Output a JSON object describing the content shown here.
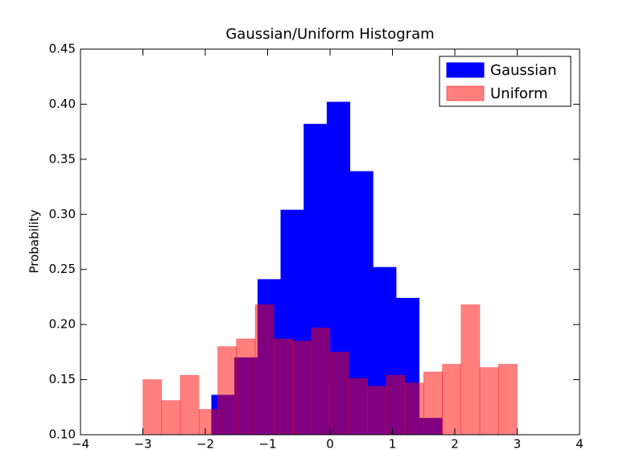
{
  "chart_data": {
    "type": "histogram",
    "title": "Gaussian/Uniform Histogram",
    "y_label": "Probability",
    "xlim": [
      -4,
      4
    ],
    "ylim": [
      0.1,
      0.45
    ],
    "xticks": [
      {
        "value": -4,
        "label": "−4"
      },
      {
        "value": -3,
        "label": "−3"
      },
      {
        "value": -2,
        "label": "−2"
      },
      {
        "value": -1,
        "label": "−1"
      },
      0,
      1,
      2,
      3,
      4
    ],
    "yticks": [
      {
        "value": 0.1,
        "label": "0.10"
      },
      0.15,
      {
        "value": 0.2,
        "label": "0.20"
      },
      0.25,
      {
        "value": 0.3,
        "label": "0.30"
      },
      0.35,
      {
        "value": 0.4,
        "label": "0.40"
      },
      0.45
    ],
    "legend": "upper right",
    "series": [
      {
        "name": "Gaussian",
        "color": "#0000ff",
        "opacity": 1,
        "bins": [
          -1.9,
          -1.53,
          -1.16,
          -0.79,
          -0.42,
          -0.05,
          0.32,
          0.69,
          1.06,
          1.43,
          1.8
        ],
        "values": [
          0.136,
          0.17,
          0.241,
          0.304,
          0.382,
          0.402,
          0.339,
          0.252,
          0.224,
          0.115
        ]
      },
      {
        "name": "Uniform",
        "color": "#ff0000",
        "opacity": 0.5,
        "bins": [
          -3,
          -2.7,
          -2.4,
          -2.1,
          -1.8,
          -1.5,
          -1.2,
          -0.9,
          -0.6,
          -0.3,
          0,
          0.3,
          0.6,
          0.9,
          1.2,
          1.5,
          1.8,
          2.1,
          2.4,
          2.7,
          3
        ],
        "values": [
          0.15,
          0.131,
          0.154,
          0.123,
          0.18,
          0.187,
          0.218,
          0.187,
          0.185,
          0.197,
          0.175,
          0.151,
          0.144,
          0.154,
          0.147,
          0.157,
          0.164,
          0.218,
          0.161,
          0.164
        ]
      }
    ]
  }
}
